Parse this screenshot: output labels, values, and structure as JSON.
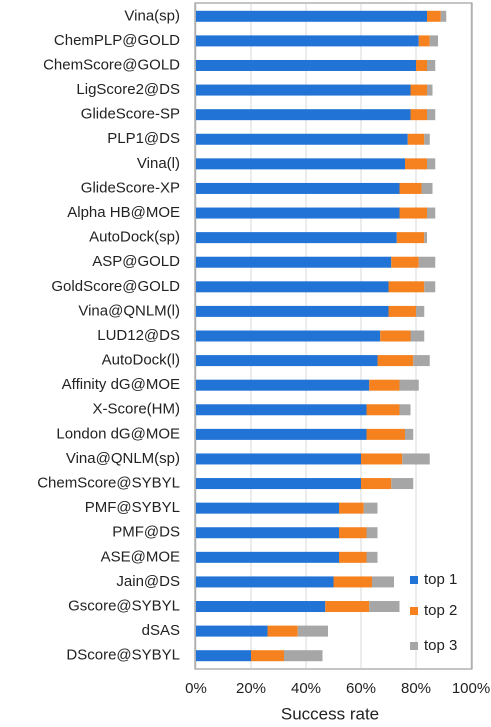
{
  "chart_data": {
    "type": "stacked-barh",
    "categories": [
      "Vina(sp)",
      "ChemPLP@GOLD",
      "ChemScore@GOLD",
      "LigScore2@DS",
      "GlideScore-SP",
      "PLP1@DS",
      "Vina(l)",
      "GlideScore-XP",
      "Alpha HB@MOE",
      "AutoDock(sp)",
      "ASP@GOLD",
      "GoldScore@GOLD",
      "Vina@QNLM(l)",
      "LUD12@DS",
      "AutoDock(l)",
      "Affinity dG@MOE",
      "X-Score(HM)",
      "London dG@MOE",
      "Vina@QNLM(sp)",
      "ChemScore@SYBYL",
      "PMF@SYBYL",
      "PMF@DS",
      "ASE@MOE",
      "Jain@DS",
      "Gscore@SYBYL",
      "dSAS",
      "DScore@SYBYL"
    ],
    "series": [
      {
        "name": "top 1",
        "color": "#2173d6",
        "values": [
          84,
          81,
          80,
          78,
          78,
          77,
          76,
          74,
          74,
          73,
          71,
          70,
          70,
          67,
          66,
          63,
          62,
          62,
          60,
          60,
          52,
          52,
          52,
          50,
          47,
          26,
          20
        ]
      },
      {
        "name": "top 2",
        "color": "#f5821f",
        "values": [
          5,
          4,
          4,
          6,
          6,
          6,
          8,
          8,
          10,
          10,
          10,
          13,
          10,
          11,
          13,
          11,
          12,
          14,
          15,
          11,
          9,
          10,
          10,
          14,
          16,
          11,
          12
        ]
      },
      {
        "name": "top 3",
        "color": "#a6a6a6",
        "values": [
          2,
          3,
          3,
          2,
          3,
          2,
          3,
          4,
          3,
          1,
          6,
          4,
          3,
          5,
          6,
          7,
          4,
          3,
          10,
          8,
          5,
          4,
          4,
          8,
          11,
          11,
          14
        ]
      }
    ],
    "x_label": "Success rate",
    "xlim": [
      0,
      100
    ],
    "xticks": [
      {
        "value": 0,
        "label": "0%"
      },
      {
        "value": 20,
        "label": "20%"
      },
      {
        "value": 40,
        "label": "40%"
      },
      {
        "value": 60,
        "label": "60%"
      },
      {
        "value": 80,
        "label": "80%"
      },
      {
        "value": 100,
        "label": "100%"
      }
    ],
    "grid": true,
    "legend": "lower-right"
  }
}
